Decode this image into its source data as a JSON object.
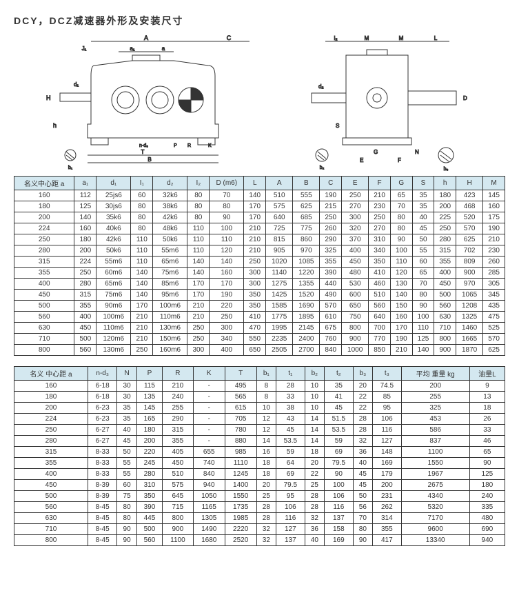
{
  "title": "DCY，DCZ减速器外形及安装尺寸",
  "diagram_labels": {
    "front": [
      "J₁",
      "A",
      "C",
      "a₁",
      "a",
      "H",
      "d₁",
      "h",
      "b₁",
      "n-d₃",
      "P",
      "R",
      "K",
      "T",
      "B"
    ],
    "side": [
      "I₂",
      "M",
      "M",
      "L",
      "d₂",
      "D",
      "S",
      "G",
      "E",
      "F",
      "N",
      "b₂",
      "b₃"
    ]
  },
  "diagram_colors": {
    "stroke": "#333333",
    "fill": "#ffffff",
    "hatch": "#666666"
  },
  "table1": {
    "headers": [
      "名义中心距 a",
      "a₁",
      "d₁",
      "I₁",
      "d₂",
      "I₂",
      "D (m6)",
      "L",
      "A",
      "B",
      "C",
      "E",
      "F",
      "G",
      "S",
      "h",
      "H",
      "M"
    ],
    "rows": [
      [
        "160",
        "112",
        "25js6",
        "60",
        "32k6",
        "80",
        "70",
        "140",
        "510",
        "555",
        "190",
        "250",
        "210",
        "65",
        "35",
        "180",
        "423",
        "145"
      ],
      [
        "180",
        "125",
        "30js6",
        "80",
        "38k6",
        "80",
        "80",
        "170",
        "575",
        "625",
        "215",
        "270",
        "230",
        "70",
        "35",
        "200",
        "468",
        "160"
      ],
      [
        "200",
        "140",
        "35k6",
        "80",
        "42k6",
        "80",
        "90",
        "170",
        "640",
        "685",
        "250",
        "300",
        "250",
        "80",
        "40",
        "225",
        "520",
        "175"
      ],
      [
        "224",
        "160",
        "40k6",
        "80",
        "48k6",
        "110",
        "100",
        "210",
        "725",
        "775",
        "260",
        "320",
        "270",
        "80",
        "45",
        "250",
        "570",
        "190"
      ],
      [
        "250",
        "180",
        "42k6",
        "110",
        "50k6",
        "110",
        "110",
        "210",
        "815",
        "860",
        "290",
        "370",
        "310",
        "90",
        "50",
        "280",
        "625",
        "210"
      ],
      [
        "280",
        "200",
        "50k6",
        "110",
        "55m6",
        "110",
        "120",
        "210",
        "905",
        "970",
        "325",
        "400",
        "340",
        "100",
        "55",
        "315",
        "702",
        "230"
      ],
      [
        "315",
        "224",
        "55m6",
        "110",
        "65m6",
        "140",
        "140",
        "250",
        "1020",
        "1085",
        "355",
        "450",
        "350",
        "110",
        "60",
        "355",
        "809",
        "260"
      ],
      [
        "355",
        "250",
        "60m6",
        "140",
        "75m6",
        "140",
        "160",
        "300",
        "1140",
        "1220",
        "390",
        "480",
        "410",
        "120",
        "65",
        "400",
        "900",
        "285"
      ],
      [
        "400",
        "280",
        "65m6",
        "140",
        "85m6",
        "170",
        "170",
        "300",
        "1275",
        "1355",
        "440",
        "530",
        "460",
        "130",
        "70",
        "450",
        "970",
        "305"
      ],
      [
        "450",
        "315",
        "75m6",
        "140",
        "95m6",
        "170",
        "190",
        "350",
        "1425",
        "1520",
        "490",
        "600",
        "510",
        "140",
        "80",
        "500",
        "1065",
        "345"
      ],
      [
        "500",
        "355",
        "90m6",
        "170",
        "100m6",
        "210",
        "220",
        "350",
        "1585",
        "1690",
        "570",
        "650",
        "560",
        "150",
        "90",
        "560",
        "1208",
        "435"
      ],
      [
        "560",
        "400",
        "100m6",
        "210",
        "110m6",
        "210",
        "250",
        "410",
        "1775",
        "1895",
        "610",
        "750",
        "640",
        "160",
        "100",
        "630",
        "1325",
        "475"
      ],
      [
        "630",
        "450",
        "110m6",
        "210",
        "130m6",
        "250",
        "300",
        "470",
        "1995",
        "2145",
        "675",
        "800",
        "700",
        "170",
        "110",
        "710",
        "1460",
        "525"
      ],
      [
        "710",
        "500",
        "120m6",
        "210",
        "150m6",
        "250",
        "340",
        "550",
        "2235",
        "2400",
        "760",
        "900",
        "770",
        "190",
        "125",
        "800",
        "1665",
        "570"
      ],
      [
        "800",
        "560",
        "130m6",
        "250",
        "160m6",
        "300",
        "400",
        "650",
        "2505",
        "2700",
        "840",
        "1000",
        "850",
        "210",
        "140",
        "900",
        "1870",
        "625"
      ]
    ],
    "header_bg": "#d4e8f0"
  },
  "table2": {
    "headers": [
      "名义 中心距 a",
      "n-d₃",
      "N",
      "P",
      "R",
      "K",
      "T",
      "b₁",
      "t₁",
      "b₂",
      "t₂",
      "b₃",
      "t₃",
      "平均 重量 kg",
      "油量L"
    ],
    "rows": [
      [
        "160",
        "6-18",
        "30",
        "115",
        "210",
        "-",
        "495",
        "8",
        "28",
        "10",
        "35",
        "20",
        "74.5",
        "200",
        "9"
      ],
      [
        "180",
        "6-18",
        "30",
        "135",
        "240",
        "-",
        "565",
        "8",
        "33",
        "10",
        "41",
        "22",
        "85",
        "255",
        "13"
      ],
      [
        "200",
        "6-23",
        "35",
        "145",
        "255",
        "-",
        "615",
        "10",
        "38",
        "10",
        "45",
        "22",
        "95",
        "325",
        "18"
      ],
      [
        "224",
        "6-23",
        "35",
        "165",
        "290",
        "-",
        "705",
        "12",
        "43",
        "14",
        "51.5",
        "28",
        "106",
        "453",
        "26"
      ],
      [
        "250",
        "6-27",
        "40",
        "180",
        "315",
        "-",
        "780",
        "12",
        "45",
        "14",
        "53.5",
        "28",
        "116",
        "586",
        "33"
      ],
      [
        "280",
        "6-27",
        "45",
        "200",
        "355",
        "-",
        "880",
        "14",
        "53.5",
        "14",
        "59",
        "32",
        "127",
        "837",
        "46"
      ],
      [
        "315",
        "8-33",
        "50",
        "220",
        "405",
        "655",
        "985",
        "16",
        "59",
        "18",
        "69",
        "36",
        "148",
        "1100",
        "65"
      ],
      [
        "355",
        "8-33",
        "55",
        "245",
        "450",
        "740",
        "1110",
        "18",
        "64",
        "20",
        "79.5",
        "40",
        "169",
        "1550",
        "90"
      ],
      [
        "400",
        "8-33",
        "55",
        "280",
        "510",
        "840",
        "1245",
        "18",
        "69",
        "22",
        "90",
        "45",
        "179",
        "1967",
        "125"
      ],
      [
        "450",
        "8-39",
        "60",
        "310",
        "575",
        "940",
        "1400",
        "20",
        "79.5",
        "25",
        "100",
        "45",
        "200",
        "2675",
        "180"
      ],
      [
        "500",
        "8-39",
        "75",
        "350",
        "645",
        "1050",
        "1550",
        "25",
        "95",
        "28",
        "106",
        "50",
        "231",
        "4340",
        "240"
      ],
      [
        "560",
        "8-45",
        "80",
        "390",
        "715",
        "1165",
        "1735",
        "28",
        "106",
        "28",
        "116",
        "56",
        "262",
        "5320",
        "335"
      ],
      [
        "630",
        "8-45",
        "80",
        "445",
        "800",
        "1305",
        "1985",
        "28",
        "116",
        "32",
        "137",
        "70",
        "314",
        "7170",
        "480"
      ],
      [
        "710",
        "8-45",
        "90",
        "500",
        "900",
        "1490",
        "2220",
        "32",
        "127",
        "36",
        "158",
        "80",
        "355",
        "9600",
        "690"
      ],
      [
        "800",
        "8-45",
        "90",
        "560",
        "1100",
        "1680",
        "2520",
        "32",
        "137",
        "40",
        "169",
        "90",
        "417",
        "13340",
        "940"
      ]
    ],
    "header_bg": "#d4e8f0"
  }
}
